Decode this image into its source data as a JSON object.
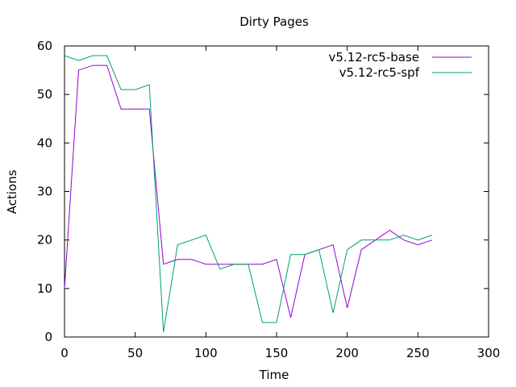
{
  "chart_data": {
    "type": "line",
    "title": "Dirty Pages",
    "xlabel": "Time",
    "ylabel": "Actions",
    "xlim": [
      0,
      300
    ],
    "ylim": [
      0,
      60
    ],
    "xticks": [
      0,
      50,
      100,
      150,
      200,
      250,
      300
    ],
    "yticks": [
      0,
      10,
      20,
      30,
      40,
      50,
      60
    ],
    "grid": false,
    "legend_position": "top-right",
    "x": [
      0,
      10,
      20,
      30,
      40,
      50,
      60,
      70,
      80,
      90,
      100,
      110,
      120,
      130,
      140,
      150,
      160,
      170,
      180,
      190,
      200,
      210,
      220,
      230,
      240,
      250,
      260
    ],
    "series": [
      {
        "name": "v5.12-rc5-base",
        "color": "#9400d3",
        "values": [
          10,
          55,
          56,
          56,
          47,
          47,
          47,
          15,
          16,
          16,
          15,
          15,
          15,
          15,
          15,
          16,
          4,
          17,
          18,
          19,
          6,
          18,
          20,
          22,
          20,
          19,
          20
        ]
      },
      {
        "name": "v5.12-rc5-spf",
        "color": "#009e73",
        "values": [
          58,
          57,
          58,
          58,
          51,
          51,
          52,
          1,
          19,
          20,
          21,
          14,
          15,
          15,
          3,
          3,
          17,
          17,
          18,
          5,
          18,
          20,
          20,
          20,
          21,
          20,
          21
        ]
      }
    ]
  }
}
